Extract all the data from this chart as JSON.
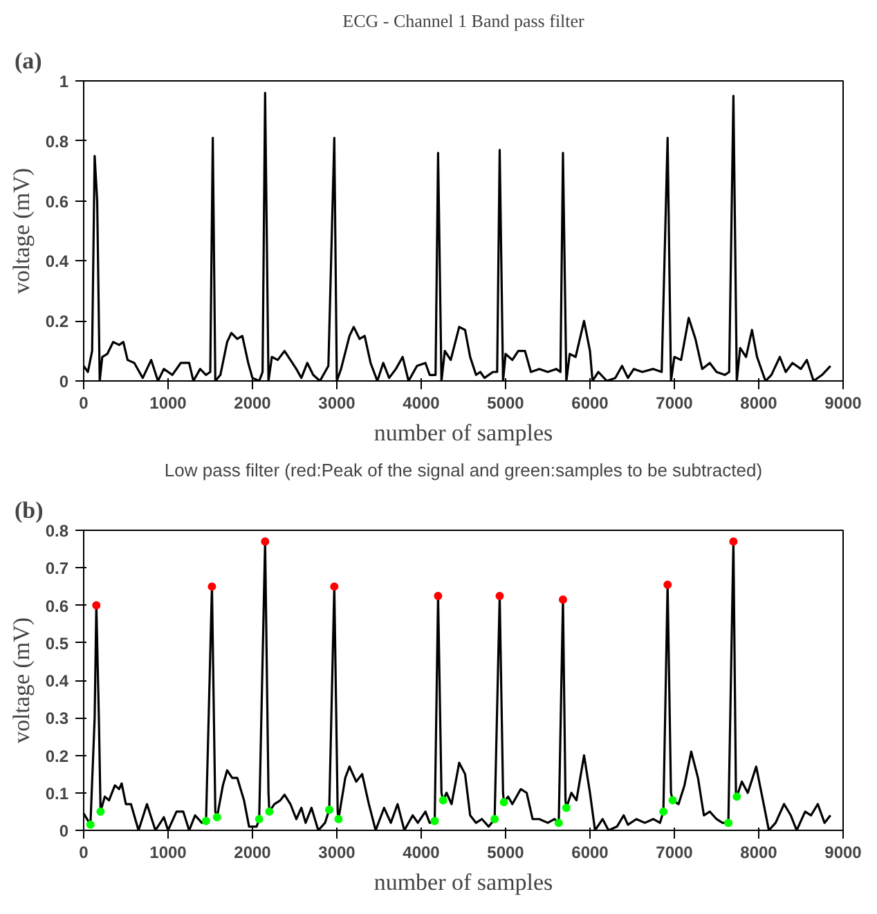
{
  "chart_data": [
    {
      "type": "line",
      "title": "ECG - Channel 1 Band pass filter",
      "xlabel": "number of samples",
      "ylabel": "voltage (mV)",
      "annotations": [
        "(a)"
      ],
      "grid": false,
      "xlim": [
        0,
        9000
      ],
      "ylim": [
        0,
        1
      ],
      "xticks": [
        0,
        1000,
        2000,
        3000,
        4000,
        5000,
        6000,
        7000,
        8000,
        9000
      ],
      "yticks": [
        0,
        0.2,
        0.4,
        0.6,
        0.8,
        1
      ],
      "series": [
        {
          "color": "#000000",
          "x": [
            0,
            50,
            100,
            130,
            160,
            190,
            220,
            280,
            350,
            420,
            470,
            520,
            600,
            700,
            800,
            880,
            950,
            1050,
            1150,
            1250,
            1300,
            1380,
            1450,
            1500,
            1530,
            1560,
            1620,
            1700,
            1750,
            1820,
            1880,
            1950,
            2000,
            2080,
            2120,
            2150,
            2190,
            2230,
            2300,
            2380,
            2450,
            2520,
            2580,
            2650,
            2720,
            2800,
            2900,
            2970,
            3000,
            3050,
            3150,
            3200,
            3270,
            3330,
            3400,
            3480,
            3550,
            3620,
            3700,
            3780,
            3850,
            3950,
            4050,
            4100,
            4170,
            4200,
            4240,
            4280,
            4350,
            4450,
            4520,
            4580,
            4650,
            4700,
            4750,
            4850,
            4900,
            4930,
            4970,
            5000,
            5080,
            5150,
            5230,
            5300,
            5400,
            5500,
            5600,
            5650,
            5680,
            5720,
            5760,
            5830,
            5930,
            6000,
            6030,
            6100,
            6200,
            6300,
            6380,
            6450,
            6520,
            6620,
            6750,
            6850,
            6920,
            6960,
            7000,
            7080,
            7170,
            7250,
            7330,
            7420,
            7500,
            7600,
            7650,
            7700,
            7740,
            7780,
            7850,
            7920,
            7980,
            8080,
            8150,
            8250,
            8320,
            8400,
            8500,
            8570,
            8650,
            8750,
            8850
          ],
          "values": [
            0.05,
            0.03,
            0.1,
            0.75,
            0.6,
            0.0,
            0.08,
            0.09,
            0.13,
            0.12,
            0.13,
            0.07,
            0.06,
            0.01,
            0.07,
            0.0,
            0.04,
            0.02,
            0.06,
            0.06,
            0.0,
            0.04,
            0.02,
            0.03,
            0.81,
            0.0,
            0.02,
            0.13,
            0.16,
            0.14,
            0.15,
            0.06,
            0.01,
            0.0,
            0.03,
            0.96,
            0.0,
            0.08,
            0.07,
            0.1,
            0.07,
            0.04,
            0.01,
            0.06,
            0.02,
            0.0,
            0.05,
            0.81,
            0.0,
            0.04,
            0.15,
            0.18,
            0.14,
            0.15,
            0.06,
            0.0,
            0.06,
            0.01,
            0.04,
            0.08,
            0.0,
            0.05,
            0.06,
            0.02,
            0.02,
            0.76,
            0.0,
            0.1,
            0.07,
            0.18,
            0.17,
            0.08,
            0.02,
            0.03,
            0.01,
            0.03,
            0.03,
            0.77,
            0.0,
            0.09,
            0.07,
            0.1,
            0.1,
            0.03,
            0.04,
            0.03,
            0.04,
            0.03,
            0.76,
            0.0,
            0.09,
            0.08,
            0.2,
            0.1,
            0.0,
            0.03,
            0.0,
            0.01,
            0.05,
            0.01,
            0.04,
            0.03,
            0.04,
            0.03,
            0.81,
            0.0,
            0.08,
            0.07,
            0.21,
            0.14,
            0.04,
            0.06,
            0.03,
            0.02,
            0.03,
            0.95,
            0.0,
            0.11,
            0.08,
            0.17,
            0.08,
            0.0,
            0.02,
            0.08,
            0.03,
            0.06,
            0.04,
            0.07,
            0.0,
            0.02,
            0.05
          ]
        }
      ]
    },
    {
      "type": "line",
      "title": "Low pass filter (red:Peak of the signal and green:samples to be subtracted)",
      "xlabel": "number of samples",
      "ylabel": "voltage (mV)",
      "annotations": [
        "(b)"
      ],
      "grid": false,
      "xlim": [
        0,
        9000
      ],
      "ylim": [
        0,
        0.8
      ],
      "xticks": [
        0,
        1000,
        2000,
        3000,
        4000,
        5000,
        6000,
        7000,
        8000,
        9000
      ],
      "yticks": [
        0,
        0.1,
        0.2,
        0.3,
        0.4,
        0.5,
        0.6,
        0.7,
        0.8
      ],
      "series": [
        {
          "color": "#000000",
          "x": [
            0,
            80,
            130,
            150,
            180,
            200,
            250,
            300,
            370,
            420,
            450,
            500,
            560,
            650,
            750,
            850,
            950,
            1000,
            1100,
            1180,
            1250,
            1320,
            1400,
            1450,
            1520,
            1560,
            1580,
            1650,
            1700,
            1760,
            1820,
            1900,
            1960,
            2050,
            2080,
            2150,
            2190,
            2200,
            2260,
            2330,
            2380,
            2450,
            2520,
            2580,
            2630,
            2700,
            2780,
            2860,
            2910,
            2970,
            3010,
            3020,
            3100,
            3150,
            3230,
            3300,
            3380,
            3460,
            3560,
            3640,
            3720,
            3800,
            3900,
            3960,
            4050,
            4100,
            4160,
            4200,
            4240,
            4260,
            4300,
            4360,
            4450,
            4520,
            4580,
            4650,
            4720,
            4800,
            4870,
            4930,
            4970,
            4980,
            5030,
            5080,
            5180,
            5250,
            5320,
            5400,
            5500,
            5580,
            5630,
            5680,
            5710,
            5720,
            5780,
            5840,
            5930,
            6000,
            6060,
            6150,
            6220,
            6320,
            6400,
            6450,
            6550,
            6650,
            6750,
            6830,
            6870,
            6920,
            6960,
            6980,
            7050,
            7120,
            7200,
            7280,
            7350,
            7420,
            7500,
            7570,
            7640,
            7700,
            7730,
            7740,
            7800,
            7870,
            7970,
            8050,
            8120,
            8200,
            8300,
            8380,
            8450,
            8550,
            8620,
            8700,
            8780,
            8850
          ],
          "values": [
            0.045,
            0.015,
            0.3,
            0.6,
            0.3,
            0.05,
            0.09,
            0.08,
            0.12,
            0.11,
            0.125,
            0.07,
            0.07,
            0.0,
            0.07,
            0.0,
            0.035,
            0.0,
            0.05,
            0.05,
            0.0,
            0.04,
            0.02,
            0.025,
            0.65,
            0.05,
            0.035,
            0.12,
            0.16,
            0.14,
            0.14,
            0.08,
            0.01,
            0.01,
            0.03,
            0.77,
            0.1,
            0.05,
            0.07,
            0.08,
            0.095,
            0.07,
            0.03,
            0.06,
            0.02,
            0.06,
            0.0,
            0.02,
            0.055,
            0.65,
            0.05,
            0.03,
            0.14,
            0.17,
            0.13,
            0.15,
            0.07,
            0.0,
            0.06,
            0.02,
            0.07,
            0.0,
            0.04,
            0.02,
            0.05,
            0.02,
            0.025,
            0.625,
            0.1,
            0.08,
            0.1,
            0.07,
            0.18,
            0.15,
            0.04,
            0.02,
            0.03,
            0.01,
            0.03,
            0.625,
            0.1,
            0.075,
            0.09,
            0.07,
            0.11,
            0.1,
            0.03,
            0.03,
            0.02,
            0.03,
            0.02,
            0.615,
            0.08,
            0.06,
            0.1,
            0.08,
            0.2,
            0.1,
            0.0,
            0.03,
            0.0,
            0.01,
            0.04,
            0.015,
            0.03,
            0.02,
            0.03,
            0.02,
            0.05,
            0.655,
            0.1,
            0.08,
            0.07,
            0.12,
            0.21,
            0.14,
            0.04,
            0.05,
            0.03,
            0.02,
            0.02,
            0.77,
            0.1,
            0.09,
            0.13,
            0.1,
            0.17,
            0.08,
            0.0,
            0.02,
            0.07,
            0.04,
            0.0,
            0.05,
            0.04,
            0.07,
            0.02,
            0.04
          ]
        },
        {
          "type": "scatter",
          "marker": "circle",
          "color": "#ff0000",
          "x": [
            150,
            1520,
            2150,
            2970,
            4200,
            4930,
            5680,
            6920,
            7700
          ],
          "values": [
            0.6,
            0.65,
            0.77,
            0.65,
            0.625,
            0.625,
            0.615,
            0.655,
            0.77
          ]
        },
        {
          "type": "scatter",
          "marker": "circle",
          "color": "#00ff00",
          "x": [
            80,
            200,
            1450,
            1580,
            2080,
            2200,
            2910,
            3020,
            4160,
            4260,
            4870,
            4980,
            5630,
            5720,
            6870,
            6980,
            7640,
            7740
          ],
          "values": [
            0.015,
            0.05,
            0.025,
            0.035,
            0.03,
            0.05,
            0.055,
            0.03,
            0.025,
            0.08,
            0.03,
            0.075,
            0.02,
            0.06,
            0.05,
            0.08,
            0.02,
            0.09
          ]
        }
      ]
    }
  ]
}
